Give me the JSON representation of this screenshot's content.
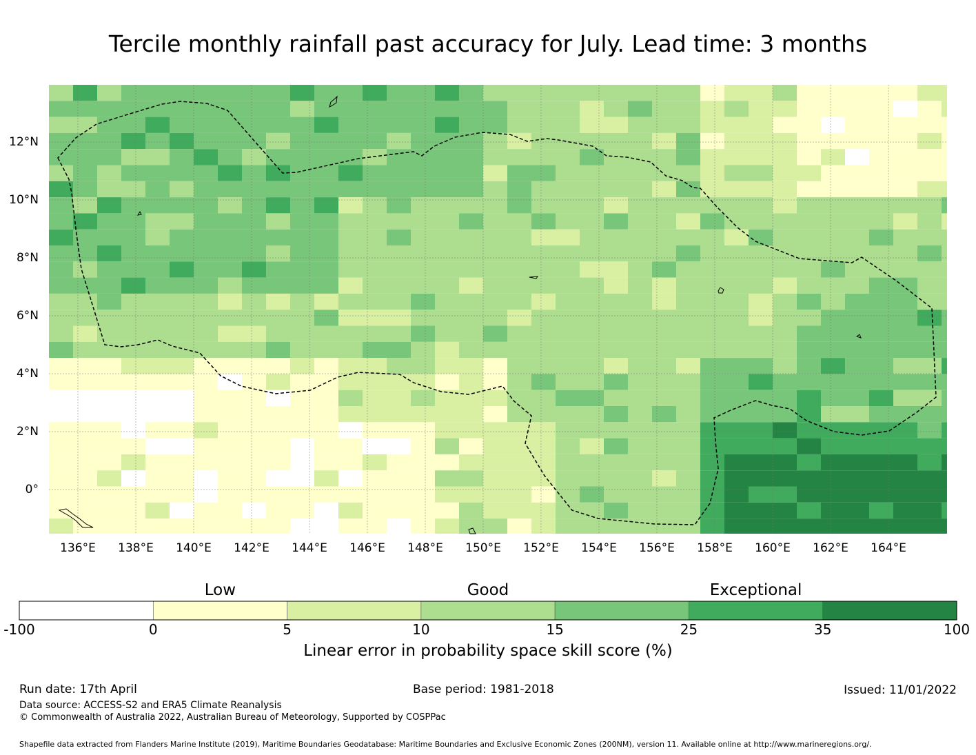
{
  "title": "Tercile monthly rainfall past accuracy for July. Lead time: 3 months",
  "map": {
    "lon_labels": [
      "136°E",
      "138°E",
      "140°E",
      "142°E",
      "144°E",
      "146°E",
      "148°E",
      "150°E",
      "152°E",
      "154°E",
      "156°E",
      "158°E",
      "160°E",
      "162°E",
      "164°E"
    ],
    "lat_labels": [
      "12°N",
      "10°N",
      "8°N",
      "6°N",
      "4°N",
      "2°N",
      "0°"
    ],
    "colors": [
      "#ffffff",
      "#ffffcc",
      "#d9f0a3",
      "#addd8e",
      "#78c679",
      "#41ab5d",
      "#238443"
    ],
    "extent": {
      "lon_min": 135,
      "lon_max": 166,
      "lat_min": -1.5,
      "lat_max": 14
    }
  },
  "colorbar": {
    "categories": [
      {
        "label": "Low"
      },
      {
        "label": "Good"
      },
      {
        "label": "Exceptional"
      }
    ],
    "ticks": [
      "-100",
      "0",
      "5",
      "10",
      "15",
      "25",
      "35",
      "100"
    ],
    "label": "Linear error in probability space skill score (%)"
  },
  "footer": {
    "run_date": "Run date: 17th April",
    "base_period": "Base period: 1981-2018",
    "issued": "Issued: 11/01/2022",
    "data_source": "Data source: ACCESS-S2 and ERA5 Climate Reanalysis",
    "copyright": "© Commonwealth of Australia 2022, Australian Bureau of Meteorology, Supported by COSPPac",
    "shapefile": "Shapefile data extracted from Flanders Marine Institute (2019), Maritime Boundaries Geodatabase: Maritime Boundaries and Exclusive Economic Zones (200NM), version 11. Available online at http://www.marineregions.org/."
  }
}
